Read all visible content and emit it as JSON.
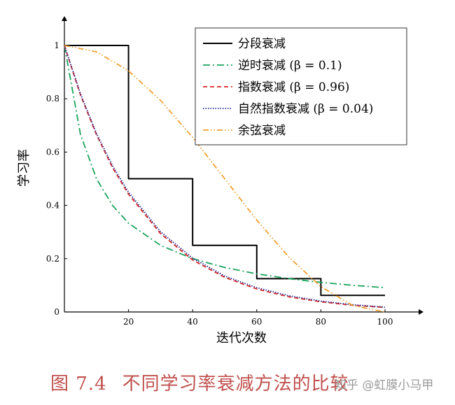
{
  "chart_data": {
    "type": "line",
    "xlabel": "迭代次数",
    "ylabel": "学习率",
    "xlim": [
      0,
      100
    ],
    "ylim": [
      0,
      1
    ],
    "xticks": [
      20,
      40,
      60,
      80,
      100
    ],
    "yticks": [
      0,
      0.2,
      0.4,
      0.6,
      0.8,
      1
    ],
    "xtick_labels": [
      "20",
      "40",
      "60",
      "80",
      "100"
    ],
    "ytick_labels": [
      "0",
      "0.2",
      "0.4",
      "0.6",
      "0.8",
      "1"
    ],
    "grid": false,
    "legend_position": "top-right",
    "series": [
      {
        "name": "分段衰减",
        "color": "#000000",
        "style": "solid",
        "x": [
          0,
          20,
          20,
          40,
          40,
          60,
          60,
          80,
          80,
          100
        ],
        "y": [
          1,
          1,
          0.5,
          0.5,
          0.25,
          0.25,
          0.125,
          0.125,
          0.0625,
          0.0625
        ]
      },
      {
        "name": "逆时衰减 (β = 0.1)",
        "color": "#1aa35b",
        "style": "dashdot",
        "x": [
          0,
          5,
          10,
          15,
          20,
          30,
          40,
          50,
          60,
          70,
          80,
          90,
          100
        ],
        "y": [
          1,
          0.667,
          0.5,
          0.4,
          0.333,
          0.25,
          0.2,
          0.167,
          0.143,
          0.125,
          0.111,
          0.1,
          0.091
        ]
      },
      {
        "name": "指数衰减 (β = 0.96)",
        "color": "#d62728",
        "style": "dashed",
        "x": [
          0,
          5,
          10,
          15,
          20,
          30,
          40,
          50,
          60,
          70,
          80,
          90,
          100
        ],
        "y": [
          1,
          0.815,
          0.665,
          0.542,
          0.442,
          0.294,
          0.195,
          0.13,
          0.086,
          0.057,
          0.038,
          0.025,
          0.017
        ]
      },
      {
        "name": "自然指数衰减 (β = 0.04)",
        "color": "#2a2a8f",
        "style": "dotted",
        "x": [
          0,
          5,
          10,
          15,
          20,
          30,
          40,
          50,
          60,
          70,
          80,
          90,
          100
        ],
        "y": [
          1,
          0.819,
          0.67,
          0.549,
          0.449,
          0.301,
          0.202,
          0.135,
          0.091,
          0.061,
          0.041,
          0.027,
          0.018
        ]
      },
      {
        "name": "余弦衰减",
        "color": "#f0a030",
        "style": "dashdotdot",
        "x": [
          0,
          10,
          20,
          30,
          40,
          50,
          60,
          70,
          80,
          90,
          100
        ],
        "y": [
          1,
          0.976,
          0.905,
          0.794,
          0.655,
          0.5,
          0.345,
          0.206,
          0.095,
          0.024,
          0
        ]
      }
    ]
  },
  "caption": {
    "figure_number": "图 7.4",
    "title": "不同学习率衰减方法的比较"
  },
  "watermark": "知乎 @虹膜小马甲"
}
